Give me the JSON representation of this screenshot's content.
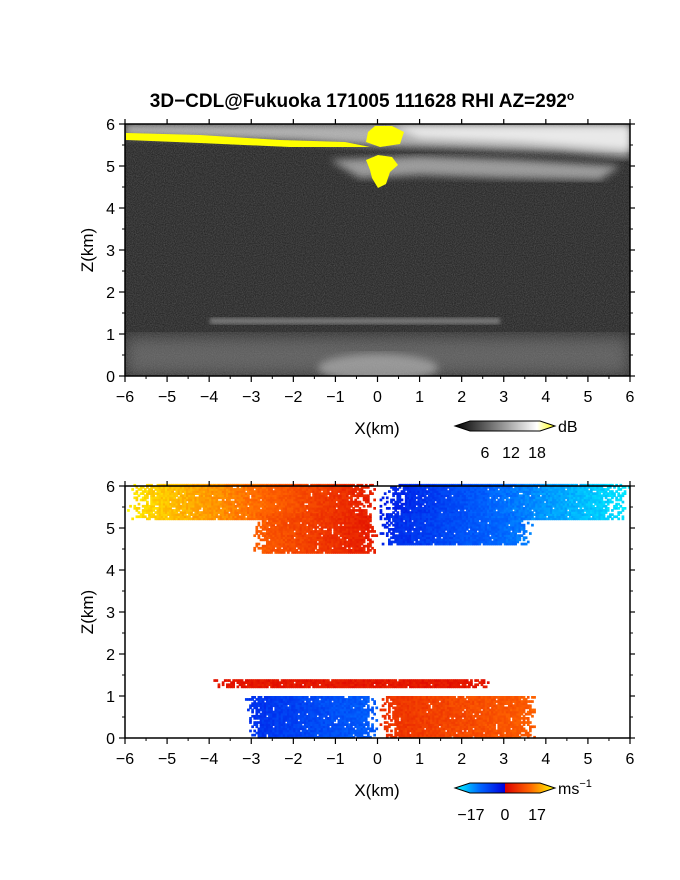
{
  "chart_data": [
    {
      "type": "heatmap",
      "title": "3D−CDL@Fukuoka 171005 111628 RHI AZ=292",
      "title_superscript": "o",
      "quantity": "backscatter intensity",
      "xlabel": "X(km)",
      "ylabel": "Z(km)",
      "xlim": [
        -6,
        6
      ],
      "ylim": [
        0,
        6
      ],
      "xticks": [
        "−6",
        "−5",
        "−4",
        "−3",
        "−2",
        "−1",
        "0",
        "1",
        "2",
        "3",
        "4",
        "5",
        "6"
      ],
      "yticks": [
        "0",
        "1",
        "2",
        "3",
        "4",
        "5",
        "6"
      ],
      "colorbar": {
        "unit": "dB",
        "ticks": [
          "6",
          "12",
          "18"
        ],
        "range": [
          0,
          20
        ],
        "colors": [
          "#000000",
          "#ffffff",
          "#ffff00"
        ]
      },
      "features": [
        {
          "label": "upper cloud layer",
          "x_range": [
            -6,
            6
          ],
          "z_range": [
            5.4,
            6.0
          ],
          "value_db": 16
        },
        {
          "label": "strong echo core",
          "x_range": [
            -0.3,
            0.5
          ],
          "z_range": [
            4.5,
            6.0
          ],
          "value_db": 20
        },
        {
          "label": "bright streak",
          "x_range": [
            -6,
            -0.5
          ],
          "z_range": [
            5.5,
            5.7
          ],
          "value_db": 20
        },
        {
          "label": "lower cloud layer",
          "x_range": [
            -1,
            6
          ],
          "z_range": [
            4.6,
            5.3
          ],
          "value_db": 12
        },
        {
          "label": "boundary layer top",
          "x_range": [
            -4,
            3
          ],
          "z_range": [
            1.2,
            1.4
          ],
          "value_db": 8
        },
        {
          "label": "boundary layer",
          "x_range": [
            -6,
            6
          ],
          "z_range": [
            0,
            1.0
          ],
          "value_db": 9
        }
      ]
    },
    {
      "type": "heatmap",
      "quantity": "radial velocity",
      "xlabel": "X(km)",
      "ylabel": "Z(km)",
      "xlim": [
        -6,
        6
      ],
      "ylim": [
        0,
        6
      ],
      "xticks": [
        "−6",
        "−5",
        "−4",
        "−3",
        "−2",
        "−1",
        "0",
        "1",
        "2",
        "3",
        "4",
        "5",
        "6"
      ],
      "yticks": [
        "0",
        "1",
        "2",
        "3",
        "4",
        "5",
        "6"
      ],
      "colorbar": {
        "unit": "ms",
        "unit_superscript": "−1",
        "ticks": [
          "−17",
          "0",
          "17"
        ],
        "range": [
          -17,
          17
        ],
        "colors": [
          "#00ffff",
          "#0066ff",
          "#0000dd",
          "#dd0000",
          "#ff6600",
          "#ffff00"
        ]
      },
      "features": [
        {
          "label": "upper layer west",
          "x_range": [
            -6,
            0
          ],
          "z_range": [
            5.2,
            6.0
          ],
          "velocity": [
            16,
            2
          ]
        },
        {
          "label": "upper layer east",
          "x_range": [
            0,
            6
          ],
          "z_range": [
            5.2,
            6.0
          ],
          "velocity": [
            -2,
            -16
          ]
        },
        {
          "label": "lower layer west",
          "x_range": [
            -3,
            0
          ],
          "z_range": [
            4.4,
            5.3
          ],
          "velocity": [
            8,
            2
          ]
        },
        {
          "label": "lower layer east",
          "x_range": [
            0,
            3.7
          ],
          "z_range": [
            4.6,
            5.3
          ],
          "velocity": [
            -3,
            -10
          ]
        },
        {
          "label": "boundary layer top",
          "x_range": [
            -4,
            2.8
          ],
          "z_range": [
            1.2,
            1.4
          ],
          "velocity": [
            2,
            2
          ]
        },
        {
          "label": "boundary layer west",
          "x_range": [
            -3.2,
            0
          ],
          "z_range": [
            0,
            1.0
          ],
          "velocity": [
            -4,
            -8
          ]
        },
        {
          "label": "boundary layer east",
          "x_range": [
            0,
            3.8
          ],
          "z_range": [
            0,
            1.0
          ],
          "velocity": [
            4,
            8
          ]
        }
      ]
    }
  ]
}
